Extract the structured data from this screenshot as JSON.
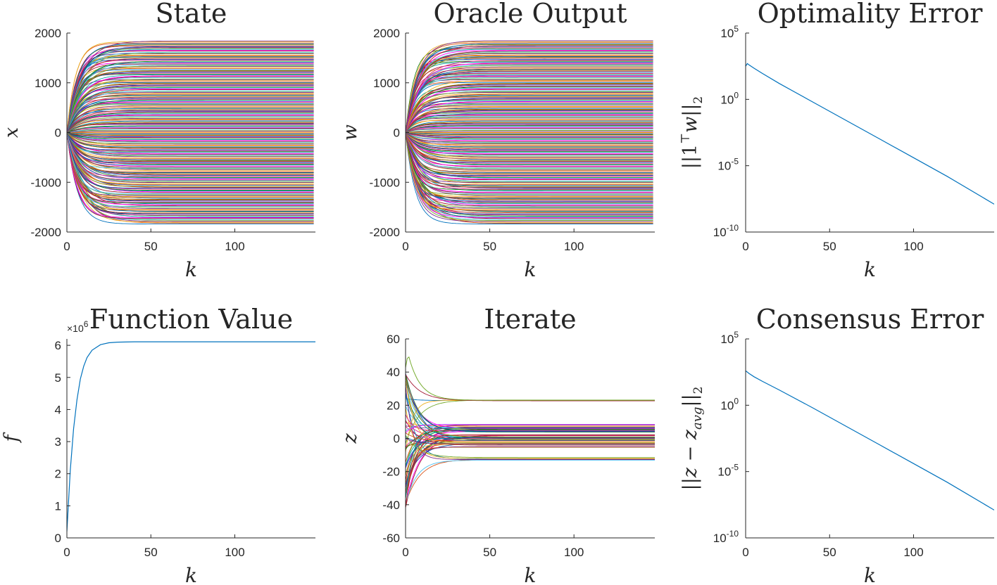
{
  "chart_data": [
    {
      "type": "line",
      "title": "State",
      "xlabel": "k",
      "ylabel": "x",
      "xlim": [
        0,
        148
      ],
      "ylim": [
        -2000,
        2000
      ],
      "yscale": "linear",
      "xticks": [
        "0",
        "50",
        "100"
      ],
      "yticks": [
        "-2000",
        "-1000",
        "0",
        "1000",
        "2000"
      ],
      "grid": false,
      "series_count": 200,
      "description_of_series": "about 200 trajectories starting at 0 and rising or falling to steady values spread between -1850 and 1850, settling by k≈25",
      "steady_state_range": [
        -1850,
        1850
      ]
    },
    {
      "type": "line",
      "title": "Oracle Output",
      "xlabel": "k",
      "ylabel": "w",
      "xlim": [
        0,
        148
      ],
      "ylim": [
        -2000,
        2000
      ],
      "yscale": "linear",
      "xticks": [
        "0",
        "50",
        "100"
      ],
      "yticks": [
        "-2000",
        "-1000",
        "0",
        "1000",
        "2000"
      ],
      "grid": false,
      "series_count": 200,
      "steady_state_range": [
        -1850,
        1850
      ]
    },
    {
      "type": "line",
      "title": "Optimality Error",
      "xlabel": "k",
      "ylabel": "||1ᵀw||₂",
      "ylabel_parts": {
        "pre": "||1",
        "sup": "⊤",
        "var": "w",
        "post": "||",
        "sub": "2"
      },
      "xlim": [
        0,
        148
      ],
      "ylim_log10": [
        -10,
        5
      ],
      "yscale": "log",
      "xticks": [
        "0",
        "50",
        "100"
      ],
      "yticks": [
        {
          "base": "10",
          "exp": "5"
        },
        {
          "base": "10",
          "exp": "0"
        },
        {
          "base": "10",
          "exp": "-5"
        },
        {
          "base": "10",
          "exp": "-10"
        }
      ],
      "grid": false,
      "color": "#0072BD",
      "x": [
        0,
        1,
        2,
        5,
        10,
        20,
        40,
        60,
        80,
        100,
        120,
        148
      ],
      "y_log10": [
        2.5,
        2.7,
        2.6,
        2.35,
        1.95,
        1.2,
        -0.2,
        -1.6,
        -3.0,
        -4.4,
        -5.8,
        -7.9
      ]
    },
    {
      "type": "line",
      "title": "Function Value",
      "xlabel": "k",
      "ylabel": "f",
      "xlim": [
        0,
        148
      ],
      "ylim": [
        0,
        6.2
      ],
      "yscale": "linear",
      "exponent_label": {
        "base": "×10",
        "exp": "6"
      },
      "xticks": [
        "0",
        "50",
        "100"
      ],
      "yticks": [
        "0",
        "1",
        "2",
        "3",
        "4",
        "5",
        "6"
      ],
      "grid": false,
      "color": "#0072BD",
      "x": [
        0,
        2,
        4,
        6,
        8,
        10,
        12,
        15,
        20,
        25,
        30,
        40,
        60,
        148
      ],
      "y": [
        0.2,
        2.1,
        3.4,
        4.3,
        4.95,
        5.35,
        5.62,
        5.85,
        6.02,
        6.08,
        6.1,
        6.11,
        6.11,
        6.11
      ]
    },
    {
      "type": "line",
      "title": "Iterate",
      "xlabel": "k",
      "ylabel": "z",
      "xlim": [
        0,
        148
      ],
      "ylim": [
        -60,
        60
      ],
      "yscale": "linear",
      "xticks": [
        "0",
        "50",
        "100"
      ],
      "yticks": [
        "-60",
        "-40",
        "-20",
        "0",
        "20",
        "40",
        "60"
      ],
      "grid": false,
      "series_count": 60,
      "steady_state_levels": [
        23,
        8,
        7,
        6,
        5,
        4,
        2,
        1,
        0,
        -1,
        -2,
        -3,
        -4,
        -5,
        -12,
        -13
      ]
    },
    {
      "type": "line",
      "title": "Consensus Error",
      "xlabel": "k",
      "ylabel": "||z − z_avg||₂",
      "ylabel_parts": {
        "pre": "||",
        "var": "z",
        "mid": " − ",
        "var2": "z",
        "sub_var": "avg",
        "post": "||",
        "sub": "2"
      },
      "xlim": [
        0,
        148
      ],
      "ylim_log10": [
        -10,
        5
      ],
      "yscale": "log",
      "xticks": [
        "0",
        "50",
        "100"
      ],
      "yticks": [
        {
          "base": "10",
          "exp": "5"
        },
        {
          "base": "10",
          "exp": "0"
        },
        {
          "base": "10",
          "exp": "-5"
        },
        {
          "base": "10",
          "exp": "-10"
        }
      ],
      "grid": false,
      "color": "#0072BD",
      "x": [
        0,
        2,
        5,
        10,
        20,
        40,
        60,
        80,
        100,
        120,
        148
      ],
      "y_log10": [
        2.6,
        2.4,
        2.15,
        1.8,
        1.15,
        -0.2,
        -1.6,
        -3.0,
        -4.4,
        -5.8,
        -7.9
      ]
    }
  ]
}
